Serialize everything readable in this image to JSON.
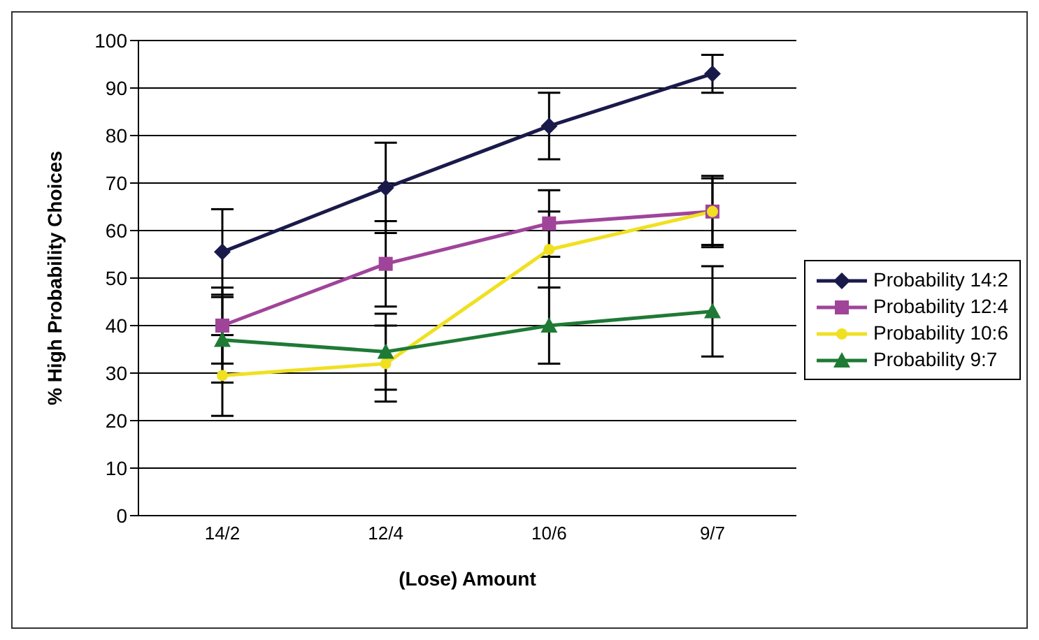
{
  "chart_data": {
    "type": "line",
    "xlabel": "(Lose) Amount",
    "ylabel": "% High Probability Choices",
    "categories": [
      "14/2",
      "12/4",
      "10/6",
      "9/7"
    ],
    "series": [
      {
        "name": "Probability 14:2",
        "color": "#1a1a4a",
        "marker": "diamond",
        "values": [
          55.5,
          69,
          82,
          93
        ],
        "errors": [
          9,
          9.5,
          7,
          4
        ]
      },
      {
        "name": "Probability 12:4",
        "color": "#a0449a",
        "marker": "square",
        "values": [
          40,
          53,
          61.5,
          64
        ],
        "errors": [
          8,
          9,
          7,
          7
        ]
      },
      {
        "name": "Probability 10:6",
        "color": "#f0e020",
        "marker": "circle",
        "values": [
          29.5,
          32,
          56,
          64
        ],
        "errors": [
          8.5,
          8,
          8,
          7.5
        ]
      },
      {
        "name": "Probability 9:7",
        "color": "#1e7a35",
        "marker": "triangle",
        "values": [
          37,
          34.5,
          40,
          43
        ],
        "errors": [
          9,
          8,
          8,
          9.5
        ]
      }
    ],
    "ylim": [
      0,
      100
    ],
    "yticks": [
      0,
      10,
      20,
      30,
      40,
      50,
      60,
      70,
      80,
      90,
      100
    ],
    "grid": "y",
    "legend": "right"
  }
}
